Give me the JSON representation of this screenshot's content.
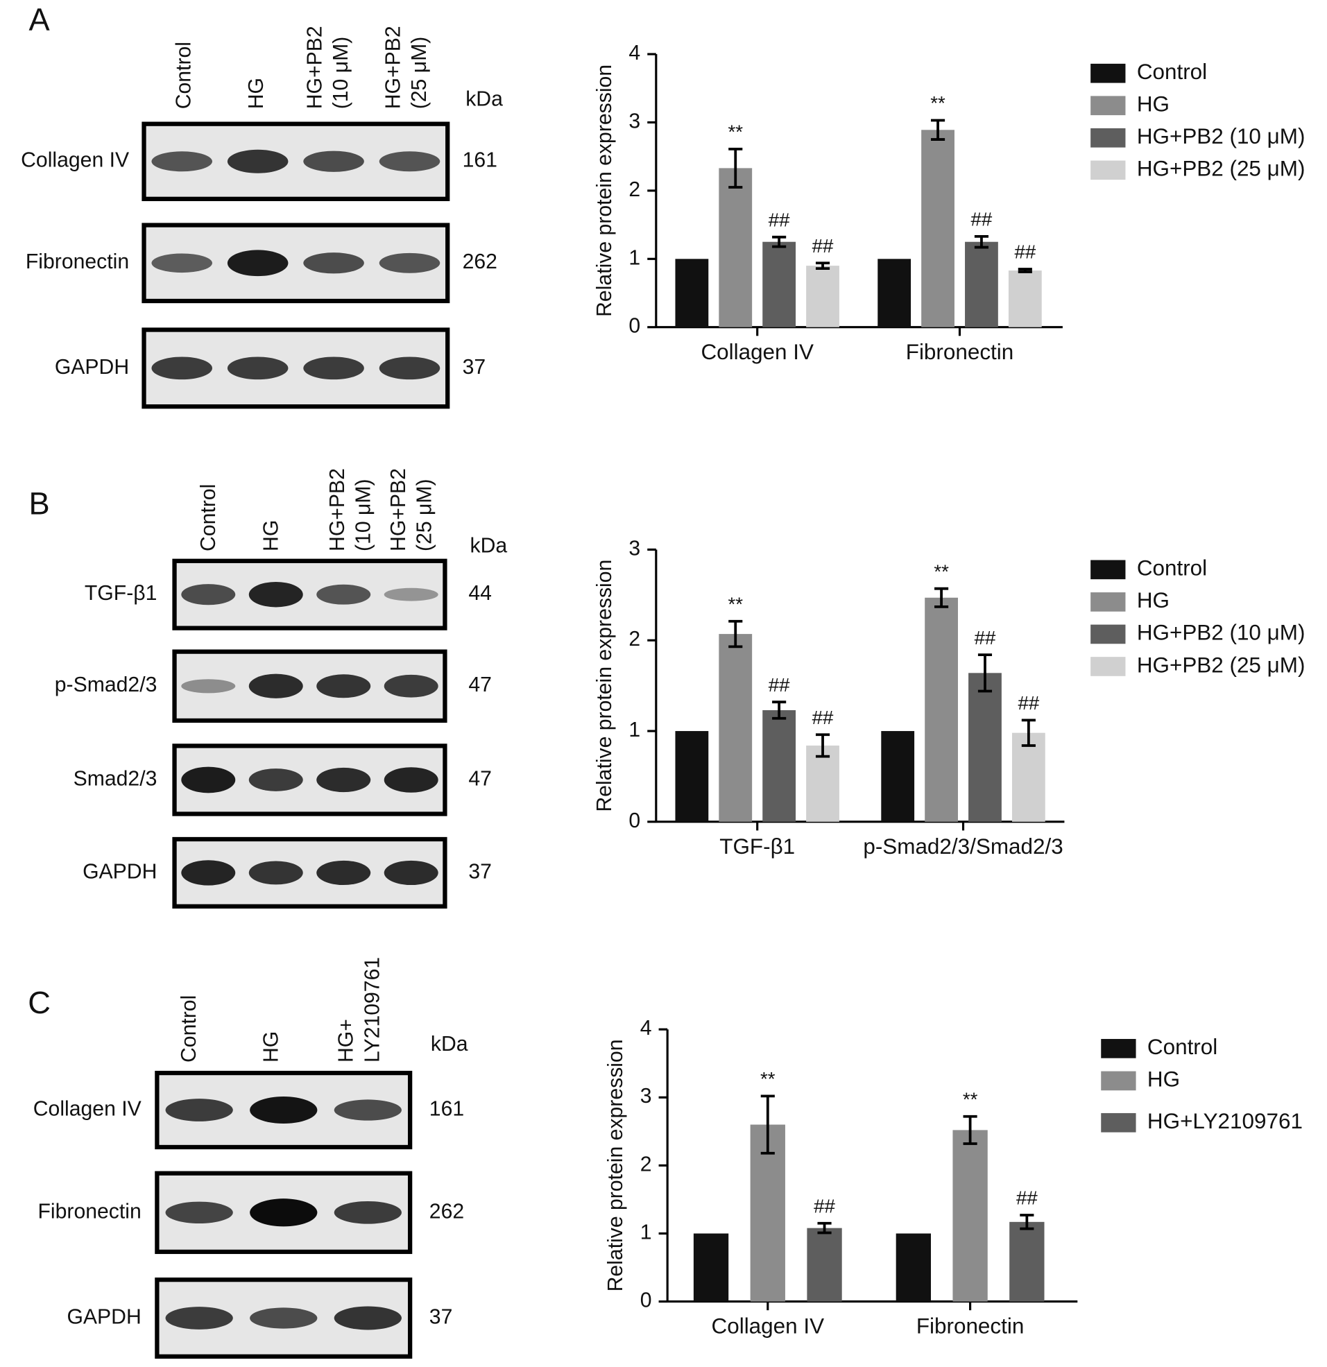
{
  "chart_data": [
    {
      "type": "bar",
      "ylabel": "Relative protein expression",
      "categories": [
        "Collagen IV",
        "Fibronectin"
      ],
      "ylim": [
        0,
        4
      ],
      "yticks": [
        0,
        1,
        2,
        3,
        4
      ],
      "series": [
        {
          "name": "Control",
          "color": "#111111",
          "values": [
            1,
            1
          ]
        },
        {
          "name": "HG",
          "color": "#8c8c8c",
          "values": [
            2.33,
            2.89
          ],
          "errors": [
            0.28,
            0.14
          ],
          "significance": [
            "**",
            "**"
          ]
        },
        {
          "name": "HG+PB2 (10 μM)",
          "color": "#5e5e5e",
          "values": [
            1.25,
            1.25
          ],
          "errors": [
            0.07,
            0.08
          ],
          "significance": [
            "##",
            "##"
          ]
        },
        {
          "name": "HG+PB2 (25 μM)",
          "color": "#d0d0d0",
          "values": [
            0.9,
            0.83
          ],
          "errors": [
            0.04,
            0.02
          ],
          "significance": [
            "##",
            "##"
          ]
        }
      ]
    },
    {
      "type": "bar",
      "ylabel": "Relative protein expression",
      "categories": [
        "TGF-β1",
        "p-Smad2/3/Smad2/3"
      ],
      "ylim": [
        0,
        3
      ],
      "yticks": [
        0,
        1,
        2,
        3
      ],
      "series": [
        {
          "name": "Control",
          "color": "#111111",
          "values": [
            1,
            1
          ]
        },
        {
          "name": "HG",
          "color": "#8c8c8c",
          "values": [
            2.07,
            2.47
          ],
          "errors": [
            0.14,
            0.1
          ],
          "significance": [
            "**",
            "**"
          ]
        },
        {
          "name": "HG+PB2 (10 μM)",
          "color": "#5e5e5e",
          "values": [
            1.23,
            1.64
          ],
          "errors": [
            0.09,
            0.2
          ],
          "significance": [
            "##",
            "##"
          ]
        },
        {
          "name": "HG+PB2 (25 μM)",
          "color": "#d0d0d0",
          "values": [
            0.84,
            0.98
          ],
          "errors": [
            0.12,
            0.14
          ],
          "significance": [
            "##",
            "##"
          ]
        }
      ]
    },
    {
      "type": "bar",
      "ylabel": "Relative protein expression",
      "categories": [
        "Collagen IV",
        "Fibronectin"
      ],
      "ylim": [
        0,
        4
      ],
      "yticks": [
        0,
        1,
        2,
        3,
        4
      ],
      "series": [
        {
          "name": "Control",
          "color": "#111111",
          "values": [
            1,
            1
          ]
        },
        {
          "name": "HG",
          "color": "#8c8c8c",
          "values": [
            2.6,
            2.52
          ],
          "errors": [
            0.42,
            0.2
          ],
          "significance": [
            "**",
            "**"
          ]
        },
        {
          "name": "HG+LY2109761",
          "color": "#5e5e5e",
          "values": [
            1.08,
            1.17
          ],
          "errors": [
            0.07,
            0.1
          ],
          "significance": [
            "##",
            "##"
          ]
        }
      ]
    }
  ],
  "panels": [
    {
      "letter": "A",
      "unit": "kDa",
      "lanes": [
        [
          "Control"
        ],
        [
          "HG"
        ],
        [
          "HG+PB2",
          "(10 μM)"
        ],
        [
          "HG+PB2",
          "(25 μM)"
        ]
      ],
      "blots": [
        {
          "label": "Collagen IV",
          "kda": 161
        },
        {
          "label": "Fibronectin",
          "kda": 262
        },
        {
          "label": "GAPDH",
          "kda": 37
        }
      ]
    },
    {
      "letter": "B",
      "unit": "kDa",
      "lanes": [
        [
          "Control"
        ],
        [
          "HG"
        ],
        [
          "HG+PB2",
          "(10 μM)"
        ],
        [
          "HG+PB2",
          "(25 μM)"
        ]
      ],
      "blots": [
        {
          "label": "TGF-β1",
          "kda": 44
        },
        {
          "label": "p-Smad2/3",
          "kda": 47
        },
        {
          "label": "Smad2/3",
          "kda": 47
        },
        {
          "label": "GAPDH",
          "kda": 37
        }
      ]
    },
    {
      "letter": "C",
      "unit": "kDa",
      "lanes": [
        [
          "Control"
        ],
        [
          "HG"
        ],
        [
          "HG+",
          "LY2109761"
        ]
      ],
      "blots": [
        {
          "label": "Collagen IV",
          "kda": 161
        },
        {
          "label": "Fibronectin",
          "kda": 262
        },
        {
          "label": "GAPDH",
          "kda": 37
        }
      ]
    }
  ]
}
